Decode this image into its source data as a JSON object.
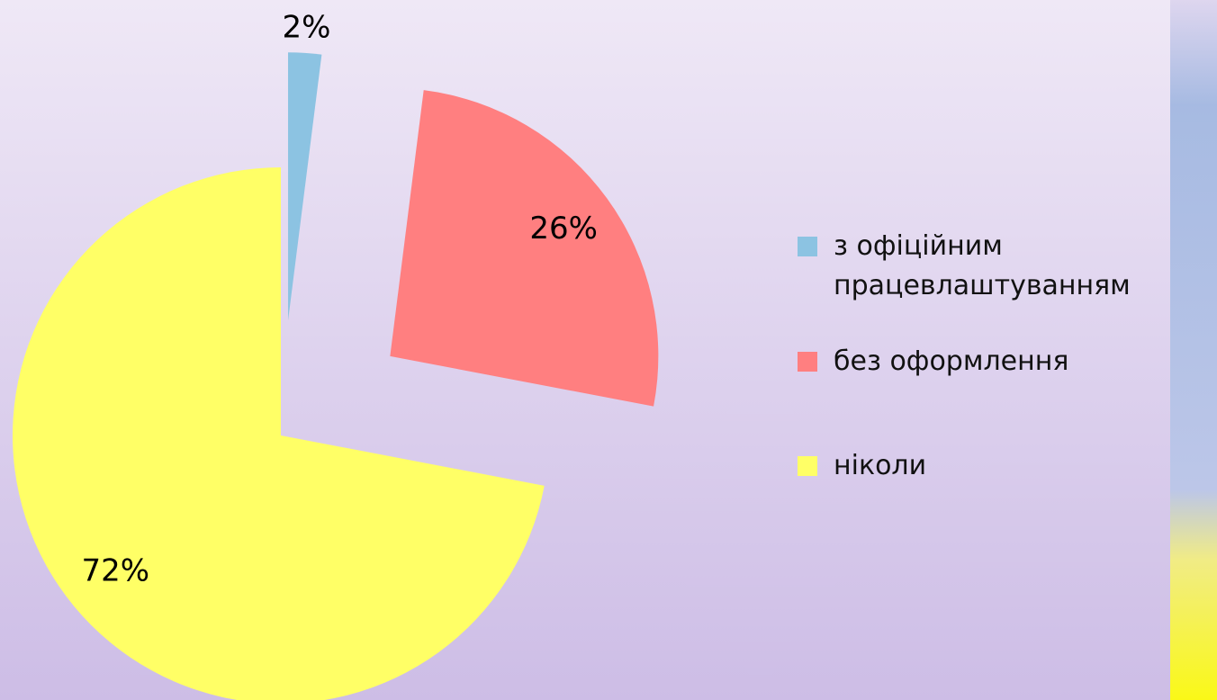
{
  "chart_data": {
    "type": "pie",
    "categories": [
      "з офіційним працевлаштуванням",
      "без оформлення",
      "ніколи"
    ],
    "values": [
      2,
      26,
      72
    ],
    "value_labels": [
      "2%",
      "26%",
      "72%"
    ],
    "colors": [
      "#8cc3e2",
      "#ff7f80",
      "#ffff66"
    ]
  }
}
